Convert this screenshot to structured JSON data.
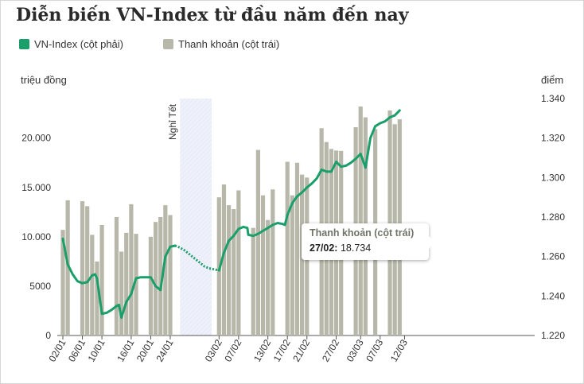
{
  "chart_data": {
    "type": "bar+line",
    "title": "Diễn biến VN-Index từ đầu năm đến nay",
    "colors": {
      "bars": "#b7b8a9",
      "line": "#1a9e6a",
      "holiday_band": "#eef0fa",
      "title": "#2a2a2a"
    },
    "legend": [
      {
        "label": "VN-Index (cột phải)",
        "color": "#1a9e6a"
      },
      {
        "label": "Thanh khoản (cột trái)",
        "color": "#b7b8a9"
      }
    ],
    "y_left": {
      "label": "triệu đồng",
      "min": 0,
      "max": 24000,
      "ticks": [
        {
          "value": 0,
          "label": "0"
        },
        {
          "value": 5000,
          "label": "5000"
        },
        {
          "value": 10000,
          "label": "10.000"
        },
        {
          "value": 15000,
          "label": "15.000"
        },
        {
          "value": 20000,
          "label": "20.000"
        }
      ]
    },
    "y_right": {
      "label": "điểm",
      "min": 1220,
      "max": 1340,
      "ticks": [
        {
          "value": 1220,
          "label": "1.220"
        },
        {
          "value": 1240,
          "label": "1.240"
        },
        {
          "value": 1260,
          "label": "1.260"
        },
        {
          "value": 1280,
          "label": "1.280"
        },
        {
          "value": 1300,
          "label": "1.300"
        },
        {
          "value": 1320,
          "label": "1.320"
        },
        {
          "value": 1340,
          "label": "1.340"
        }
      ]
    },
    "x_ticks": [
      {
        "day": 1,
        "label": "02/01"
      },
      {
        "day": 5,
        "label": "06/01"
      },
      {
        "day": 9,
        "label": "10/01"
      },
      {
        "day": 15,
        "label": "16/01"
      },
      {
        "day": 19,
        "label": "20/01"
      },
      {
        "day": 23,
        "label": "24/01"
      },
      {
        "day": 33,
        "label": "03/02"
      },
      {
        "day": 37,
        "label": "07/02"
      },
      {
        "day": 43,
        "label": "13/02"
      },
      {
        "day": 47,
        "label": "17/02"
      },
      {
        "day": 51,
        "label": "21/02"
      },
      {
        "day": 57,
        "label": "27/02"
      },
      {
        "day": 62,
        "label": "03/03"
      },
      {
        "day": 66,
        "label": "07/03"
      },
      {
        "day": 71,
        "label": "12/03"
      }
    ],
    "holiday": {
      "label": "Nghỉ Tết",
      "start_day": 25,
      "end_day": 31.5
    },
    "liquidity": [
      {
        "day": 1,
        "value": 10700
      },
      {
        "day": 2,
        "value": 13700
      },
      {
        "day": 5,
        "value": 13600
      },
      {
        "day": 6,
        "value": 13100
      },
      {
        "day": 7,
        "value": 10200
      },
      {
        "day": 8,
        "value": 7500
      },
      {
        "day": 9,
        "value": 11200
      },
      {
        "day": 12,
        "value": 12000
      },
      {
        "day": 13,
        "value": 8500
      },
      {
        "day": 14,
        "value": 10400
      },
      {
        "day": 15,
        "value": 13300
      },
      {
        "day": 16,
        "value": 10300
      },
      {
        "day": 19,
        "value": 10000
      },
      {
        "day": 20,
        "value": 11500
      },
      {
        "day": 21,
        "value": 12000
      },
      {
        "day": 22,
        "value": 13200
      },
      {
        "day": 23,
        "value": 12200
      },
      {
        "day": 33,
        "value": 14000
      },
      {
        "day": 34,
        "value": 15300
      },
      {
        "day": 35,
        "value": 13200
      },
      {
        "day": 36,
        "value": 12800
      },
      {
        "day": 37,
        "value": 14700
      },
      {
        "day": 40,
        "value": 10900
      },
      {
        "day": 41,
        "value": 18800
      },
      {
        "day": 42,
        "value": 14200
      },
      {
        "day": 43,
        "value": 11700
      },
      {
        "day": 44,
        "value": 14800
      },
      {
        "day": 47,
        "value": 17600
      },
      {
        "day": 48,
        "value": 14200
      },
      {
        "day": 49,
        "value": 17500
      },
      {
        "day": 50,
        "value": 16300
      },
      {
        "day": 51,
        "value": 16000
      },
      {
        "day": 54,
        "value": 21000
      },
      {
        "day": 55,
        "value": 19600
      },
      {
        "day": 56,
        "value": 18900
      },
      {
        "day": 57,
        "value": 18734
      },
      {
        "day": 58,
        "value": 18700
      },
      {
        "day": 61,
        "value": 21100
      },
      {
        "day": 62,
        "value": 23200
      },
      {
        "day": 63,
        "value": 22100
      },
      {
        "day": 65,
        "value": 20900
      },
      {
        "day": 68,
        "value": 22800
      },
      {
        "day": 69,
        "value": 21400
      },
      {
        "day": 70,
        "value": 21900
      }
    ],
    "vnindex": [
      [
        1,
        1269
      ],
      [
        2,
        1256
      ],
      [
        3,
        1251
      ],
      [
        4,
        1247.5
      ],
      [
        5,
        1246.5
      ],
      [
        6,
        1247
      ],
      [
        7,
        1250.5
      ],
      [
        7.6,
        1251
      ],
      [
        8,
        1249
      ],
      [
        9,
        1231
      ],
      [
        10,
        1231.5
      ],
      [
        11,
        1233
      ],
      [
        12,
        1235
      ],
      [
        12.5,
        1235.5
      ],
      [
        13,
        1229
      ],
      [
        14,
        1237
      ],
      [
        15,
        1241
      ],
      [
        16,
        1249
      ],
      [
        17,
        1249.5
      ],
      [
        18,
        1249.5
      ],
      [
        19,
        1249.5
      ],
      [
        20,
        1245
      ],
      [
        21,
        1243
      ],
      [
        22,
        1260
      ],
      [
        23,
        1265
      ],
      [
        24,
        1265.5
      ],
      [
        25,
        1264.5
      ],
      [
        26,
        1263
      ],
      [
        27,
        1261
      ],
      [
        28,
        1259
      ],
      [
        29,
        1257
      ],
      [
        30,
        1255
      ],
      [
        31,
        1254
      ],
      [
        32,
        1253.5
      ],
      [
        33,
        1253
      ],
      [
        34,
        1262
      ],
      [
        35,
        1268
      ],
      [
        36,
        1270.5
      ],
      [
        37,
        1274
      ],
      [
        38,
        1275
      ],
      [
        38.8,
        1274.5
      ],
      [
        39,
        1271
      ],
      [
        40,
        1270.5
      ],
      [
        41,
        1271.5
      ],
      [
        42,
        1273
      ],
      [
        43,
        1274.5
      ],
      [
        44,
        1276
      ],
      [
        45,
        1277
      ],
      [
        46,
        1276.5
      ],
      [
        46.5,
        1276
      ],
      [
        47,
        1281
      ],
      [
        48,
        1287
      ],
      [
        49,
        1290.5
      ],
      [
        50,
        1292.5
      ],
      [
        51,
        1295
      ],
      [
        52,
        1297
      ],
      [
        53,
        1299.5
      ],
      [
        54,
        1304
      ],
      [
        55,
        1303
      ],
      [
        56,
        1303
      ],
      [
        57,
        1308
      ],
      [
        58,
        1305.5
      ],
      [
        59,
        1306
      ],
      [
        60,
        1307.5
      ],
      [
        61,
        1309.5
      ],
      [
        62,
        1312
      ],
      [
        63,
        1305
      ],
      [
        64,
        1320
      ],
      [
        65,
        1326
      ],
      [
        66,
        1327.5
      ],
      [
        67,
        1328.5
      ],
      [
        68,
        1330.5
      ],
      [
        69,
        1331.5
      ],
      [
        70,
        1334
      ]
    ],
    "tooltip": {
      "title": "Thanh khoản (cột trái)",
      "date": "27/02:",
      "value": "18.734"
    }
  }
}
